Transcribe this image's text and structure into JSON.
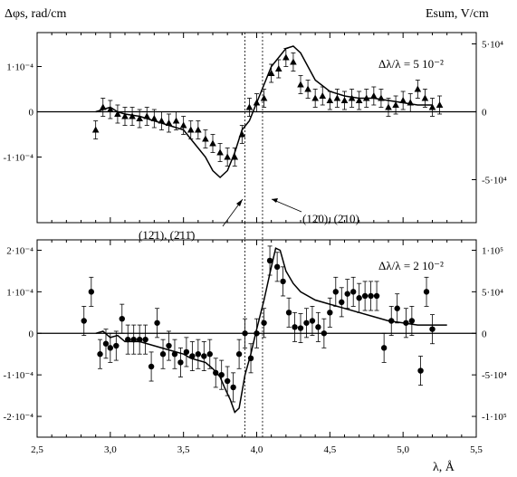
{
  "chart_data": [
    {
      "type": "scatter",
      "panel": "top",
      "y_label": "Δφs, rad/cm",
      "y2_label": "Esum, V/cm",
      "annotation": "Δλ/λ = 5 10⁻²",
      "xlim": [
        2.5,
        5.5
      ],
      "ylim": [
        -0.000245,
        0.000175
      ],
      "y2lim": [
        -81667,
        58333
      ],
      "y_ticks": [
        {
          "v": 0.0001,
          "label": "1·10⁻⁴"
        },
        {
          "v": 0,
          "label": "0"
        },
        {
          "v": -0.0001,
          "label": "-1·10⁻⁴"
        }
      ],
      "y2_ticks": [
        {
          "v": 50000,
          "label": "5·10⁴"
        },
        {
          "v": 0,
          "label": "0"
        },
        {
          "v": -50000,
          "label": "-5·10⁴"
        }
      ],
      "series": [
        {
          "kind": "points",
          "marker": "triangle",
          "x": [
            2.9,
            2.95,
            3.0,
            3.05,
            3.1,
            3.15,
            3.2,
            3.25,
            3.3,
            3.35,
            3.4,
            3.45,
            3.5,
            3.55,
            3.6,
            3.65,
            3.7,
            3.75,
            3.8,
            3.85,
            3.9,
            3.95,
            4.0,
            4.05,
            4.1,
            4.15,
            4.2,
            4.25,
            4.3,
            4.35,
            4.4,
            4.45,
            4.5,
            4.55,
            4.6,
            4.65,
            4.7,
            4.75,
            4.8,
            4.85,
            4.9,
            4.95,
            5.0,
            5.05,
            5.1,
            5.15,
            5.2,
            5.25
          ],
          "y": [
            -4e-05,
            1e-05,
            5e-06,
            -5e-06,
            -1e-05,
            -1e-05,
            -1.5e-05,
            -1e-05,
            -1.5e-05,
            -2e-05,
            -2.5e-05,
            -2e-05,
            -3e-05,
            -4e-05,
            -4e-05,
            -6e-05,
            -7e-05,
            -9e-05,
            -0.0001,
            -0.0001,
            -5e-05,
            1e-05,
            2e-05,
            3e-05,
            8.5e-05,
            9.5e-05,
            0.00012,
            0.00011,
            6e-05,
            5e-05,
            3e-05,
            3.5e-05,
            2.5e-05,
            3e-05,
            2.5e-05,
            3e-05,
            2.5e-05,
            3e-05,
            3.5e-05,
            3e-05,
            1e-05,
            1.5e-05,
            2.5e-05,
            2e-05,
            5e-05,
            3e-05,
            1e-05,
            1.5e-05
          ],
          "err": [
            2e-05,
            2e-05,
            2e-05,
            2e-05,
            2e-05,
            2e-05,
            2e-05,
            2e-05,
            2e-05,
            2e-05,
            2e-05,
            2e-05,
            2e-05,
            2e-05,
            2e-05,
            2e-05,
            2e-05,
            2e-05,
            2e-05,
            2e-05,
            2e-05,
            2e-05,
            2e-05,
            2e-05,
            2e-05,
            2e-05,
            2e-05,
            2e-05,
            2e-05,
            2e-05,
            2e-05,
            2e-05,
            2e-05,
            2e-05,
            2e-05,
            2e-05,
            2e-05,
            2e-05,
            2e-05,
            2e-05,
            2e-05,
            2e-05,
            2e-05,
            2e-05,
            2e-05,
            2e-05,
            2e-05,
            2e-05
          ]
        },
        {
          "kind": "line",
          "x": [
            2.9,
            3.0,
            3.05,
            3.1,
            3.2,
            3.3,
            3.4,
            3.5,
            3.55,
            3.6,
            3.65,
            3.7,
            3.75,
            3.8,
            3.85,
            3.9,
            3.95,
            4.0,
            4.05,
            4.1,
            4.15,
            4.2,
            4.25,
            4.3,
            4.35,
            4.4,
            4.5,
            4.6,
            4.7,
            4.8,
            4.9,
            5.0,
            5.1,
            5.2
          ],
          "y": [
            0.0,
            1e-05,
            0.0,
            -5e-06,
            -1e-05,
            -2e-05,
            -3e-05,
            -4e-05,
            -6e-05,
            -8e-05,
            -0.0001,
            -0.00013,
            -0.000145,
            -0.00013,
            -9e-05,
            -4e-05,
            -2e-05,
            2e-05,
            6e-05,
            0.0001,
            0.00012,
            0.00014,
            0.000145,
            0.00013,
            0.0001,
            7e-05,
            4.5e-05,
            3.5e-05,
            3e-05,
            3e-05,
            2.5e-05,
            2e-05,
            1.5e-05,
            1.5e-05
          ]
        }
      ],
      "vlines": [
        3.92,
        4.04
      ],
      "vline_labels": [
        "(12̄1), (2̄11̄)",
        "(12̄0), (2̄10)"
      ]
    },
    {
      "type": "scatter",
      "panel": "bottom",
      "xlabel": "λ, Å",
      "annotation": "Δλ/λ = 2 10⁻²",
      "xlim": [
        2.5,
        5.5
      ],
      "x_ticks": [
        {
          "v": 2.5,
          "label": "2,5"
        },
        {
          "v": 3.0,
          "label": "3,0"
        },
        {
          "v": 3.5,
          "label": "3,5"
        },
        {
          "v": 4.0,
          "label": "4,0"
        },
        {
          "v": 4.5,
          "label": "4,5"
        },
        {
          "v": 5.0,
          "label": "5,0"
        },
        {
          "v": 5.5,
          "label": "5,5"
        }
      ],
      "ylim": [
        -0.00025,
        0.000225
      ],
      "y2lim": [
        -125000,
        112500
      ],
      "y_ticks": [
        {
          "v": 0.0002,
          "label": "2·10⁻⁴"
        },
        {
          "v": 0.0001,
          "label": "1·10⁻⁴"
        },
        {
          "v": 0,
          "label": "0"
        },
        {
          "v": -0.0001,
          "label": "-1·10⁻⁴"
        },
        {
          "v": -0.0002,
          "label": "-2·10⁻⁴"
        }
      ],
      "y2_ticks": [
        {
          "v": 100000,
          "label": "1·10⁵"
        },
        {
          "v": 50000,
          "label": "5·10⁴"
        },
        {
          "v": 0,
          "label": "0"
        },
        {
          "v": -50000,
          "label": "-5·10⁴"
        },
        {
          "v": -100000,
          "label": "-1·10⁵"
        }
      ],
      "series": [
        {
          "kind": "points",
          "marker": "circle",
          "x": [
            2.82,
            2.87,
            2.93,
            2.97,
            3.0,
            3.04,
            3.08,
            3.12,
            3.16,
            3.2,
            3.24,
            3.28,
            3.32,
            3.36,
            3.4,
            3.44,
            3.48,
            3.52,
            3.56,
            3.6,
            3.64,
            3.68,
            3.72,
            3.76,
            3.8,
            3.84,
            3.88,
            3.92,
            3.96,
            4.0,
            4.05,
            4.09,
            4.14,
            4.18,
            4.22,
            4.26,
            4.3,
            4.34,
            4.38,
            4.42,
            4.46,
            4.5,
            4.54,
            4.58,
            4.62,
            4.66,
            4.7,
            4.74,
            4.78,
            4.82,
            4.87,
            4.92,
            4.96,
            5.02,
            5.06,
            5.12,
            5.16,
            5.2
          ],
          "y": [
            3e-05,
            0.0001,
            -5e-05,
            -2.5e-05,
            -3.5e-05,
            -3e-05,
            3.5e-05,
            -1.5e-05,
            -1.5e-05,
            -1.5e-05,
            -1.5e-05,
            -8e-05,
            2.5e-05,
            -5e-05,
            -3e-05,
            -5e-05,
            -7e-05,
            -4.5e-05,
            -5.5e-05,
            -5e-05,
            -5.5e-05,
            -5e-05,
            -9.5e-05,
            -0.0001,
            -0.000115,
            -0.00013,
            -5e-05,
            0.0,
            -6e-05,
            0.0,
            2.5e-05,
            0.000175,
            0.00016,
            0.000125,
            5e-05,
            1.5e-05,
            1.25e-05,
            2.5e-05,
            3e-05,
            1.5e-05,
            0.0,
            5e-05,
            0.0001,
            7.5e-05,
            9.5e-05,
            0.0001,
            8.5e-05,
            9e-05,
            9e-05,
            9e-05,
            -3.5e-05,
            3e-05,
            6e-05,
            2.5e-05,
            3e-05,
            -9e-05,
            0.0001,
            1e-05
          ],
          "err": [
            3.5e-05,
            3.5e-05,
            3.5e-05,
            3.5e-05,
            3.5e-05,
            3.5e-05,
            3.5e-05,
            3.5e-05,
            3.5e-05,
            3.5e-05,
            3.5e-05,
            3.5e-05,
            3.5e-05,
            3.5e-05,
            3.5e-05,
            3.5e-05,
            3.5e-05,
            3.5e-05,
            3.5e-05,
            3.5e-05,
            3.5e-05,
            3.5e-05,
            3.5e-05,
            3.5e-05,
            3.5e-05,
            3.5e-05,
            3.5e-05,
            3.5e-05,
            3.5e-05,
            3.5e-05,
            3.5e-05,
            3.5e-05,
            3.5e-05,
            3.5e-05,
            3.5e-05,
            3.5e-05,
            3.5e-05,
            3.5e-05,
            3.5e-05,
            3.5e-05,
            3.5e-05,
            3.5e-05,
            3.5e-05,
            3.5e-05,
            3.5e-05,
            3.5e-05,
            3.5e-05,
            3.5e-05,
            3.5e-05,
            3.5e-05,
            3.5e-05,
            3.5e-05,
            3.5e-05,
            3.5e-05,
            3.5e-05,
            3.5e-05,
            3.5e-05,
            3.5e-05
          ]
        },
        {
          "kind": "line",
          "x": [
            2.9,
            2.95,
            3.0,
            3.05,
            3.1,
            3.2,
            3.3,
            3.4,
            3.5,
            3.55,
            3.6,
            3.65,
            3.7,
            3.75,
            3.78,
            3.82,
            3.85,
            3.88,
            3.92,
            3.96,
            4.0,
            4.05,
            4.1,
            4.13,
            4.16,
            4.2,
            4.25,
            4.3,
            4.4,
            4.5,
            4.6,
            4.7,
            4.8,
            4.9,
            5.0,
            5.1,
            5.2,
            5.3
          ],
          "y": [
            0.0,
            5e-06,
            -1e-05,
            -5e-06,
            -2e-05,
            -2e-05,
            -3e-05,
            -4e-05,
            -5e-05,
            -6e-05,
            -6.5e-05,
            -7e-05,
            -8.5e-05,
            -0.000105,
            -0.00013,
            -0.00016,
            -0.00019,
            -0.00018,
            -0.0001,
            -5e-05,
            1e-05,
            8e-05,
            0.00016,
            0.000205,
            0.0002,
            0.00015,
            0.00012,
            0.0001,
            8e-05,
            7e-05,
            6e-05,
            5e-05,
            4e-05,
            3e-05,
            2.5e-05,
            2e-05,
            2e-05,
            2e-05
          ]
        }
      ],
      "vlines": [
        3.92,
        4.04
      ]
    }
  ]
}
